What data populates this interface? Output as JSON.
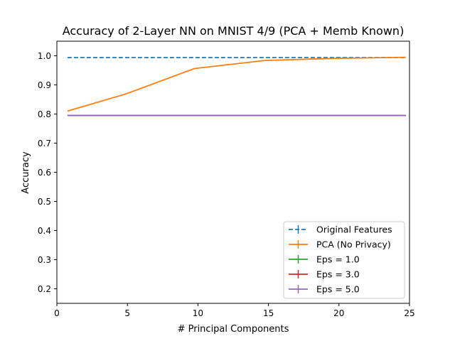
{
  "chart_data": {
    "type": "line",
    "title": "Accuracy of 2-Layer NN on MNIST 4/9 (PCA + Memb Known)",
    "xlabel": "# Principal Components",
    "ylabel": "Accuracy",
    "xlim": [
      0,
      25
    ],
    "ylim": [
      0.15,
      1.05
    ],
    "xticks": [
      0,
      5,
      10,
      15,
      20,
      25
    ],
    "yticks": [
      0.2,
      0.3,
      0.4,
      0.5,
      0.6,
      0.7,
      0.8,
      0.9,
      1.0
    ],
    "xtick_labels": [
      "0",
      "5",
      "10",
      "15",
      "20",
      "25"
    ],
    "ytick_labels": [
      "0.2",
      "0.3",
      "0.4",
      "0.5",
      "0.6",
      "0.7",
      "0.8",
      "0.9",
      "1.0"
    ],
    "grid": false,
    "legend_position": "lower-right",
    "series": [
      {
        "name": "Original Features",
        "color": "#1f77b4",
        "style": "dashed",
        "x": [
          0.75,
          24.75
        ],
        "y": [
          0.994,
          0.994
        ]
      },
      {
        "name": "PCA (No Privacy)",
        "color": "#ff7f0e",
        "style": "solid",
        "x": [
          0.75,
          4.9,
          9.75,
          14.75,
          19.75,
          24.75
        ],
        "y": [
          0.81,
          0.869,
          0.956,
          0.984,
          0.991,
          0.995
        ]
      },
      {
        "name": "Eps = 1.0",
        "color": "#2ca02c",
        "style": "solid",
        "x": [
          0.75,
          24.75
        ],
        "y": [
          0.795,
          0.795
        ]
      },
      {
        "name": "Eps = 3.0",
        "color": "#d62728",
        "style": "solid",
        "x": [
          0.75,
          24.75
        ],
        "y": [
          0.795,
          0.795
        ]
      },
      {
        "name": "Eps = 5.0",
        "color": "#9467bd",
        "style": "solid",
        "x": [
          0.75,
          24.75
        ],
        "y": [
          0.795,
          0.795
        ]
      }
    ]
  }
}
